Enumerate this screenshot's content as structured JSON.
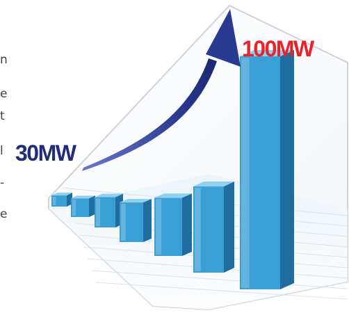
{
  "text_fragments": [
    "n",
    "e",
    "t",
    "l",
    "-",
    "e"
  ],
  "chart_data": {
    "type": "bar",
    "title": "",
    "xlabel": "",
    "ylabel": "",
    "annotations": [
      {
        "text": "30MW",
        "color": "#1f2d7a",
        "position": "left"
      },
      {
        "text": "100MW",
        "color": "#e8242a",
        "position": "top-right"
      }
    ],
    "start_value": 30,
    "end_value": 100,
    "unit": "MW",
    "series": [
      {
        "values": [
          4,
          8,
          13,
          17,
          25,
          37,
          100
        ]
      }
    ],
    "ylim": [
      0,
      100
    ],
    "grid": true,
    "trend_arrow": true,
    "colors": {
      "bar_front": "#3a9fd4",
      "bar_side": "#1f6c9e",
      "bar_top": "#8fd1ef",
      "arrow": "#2a3a90",
      "frame": "#cfd3d8"
    }
  }
}
